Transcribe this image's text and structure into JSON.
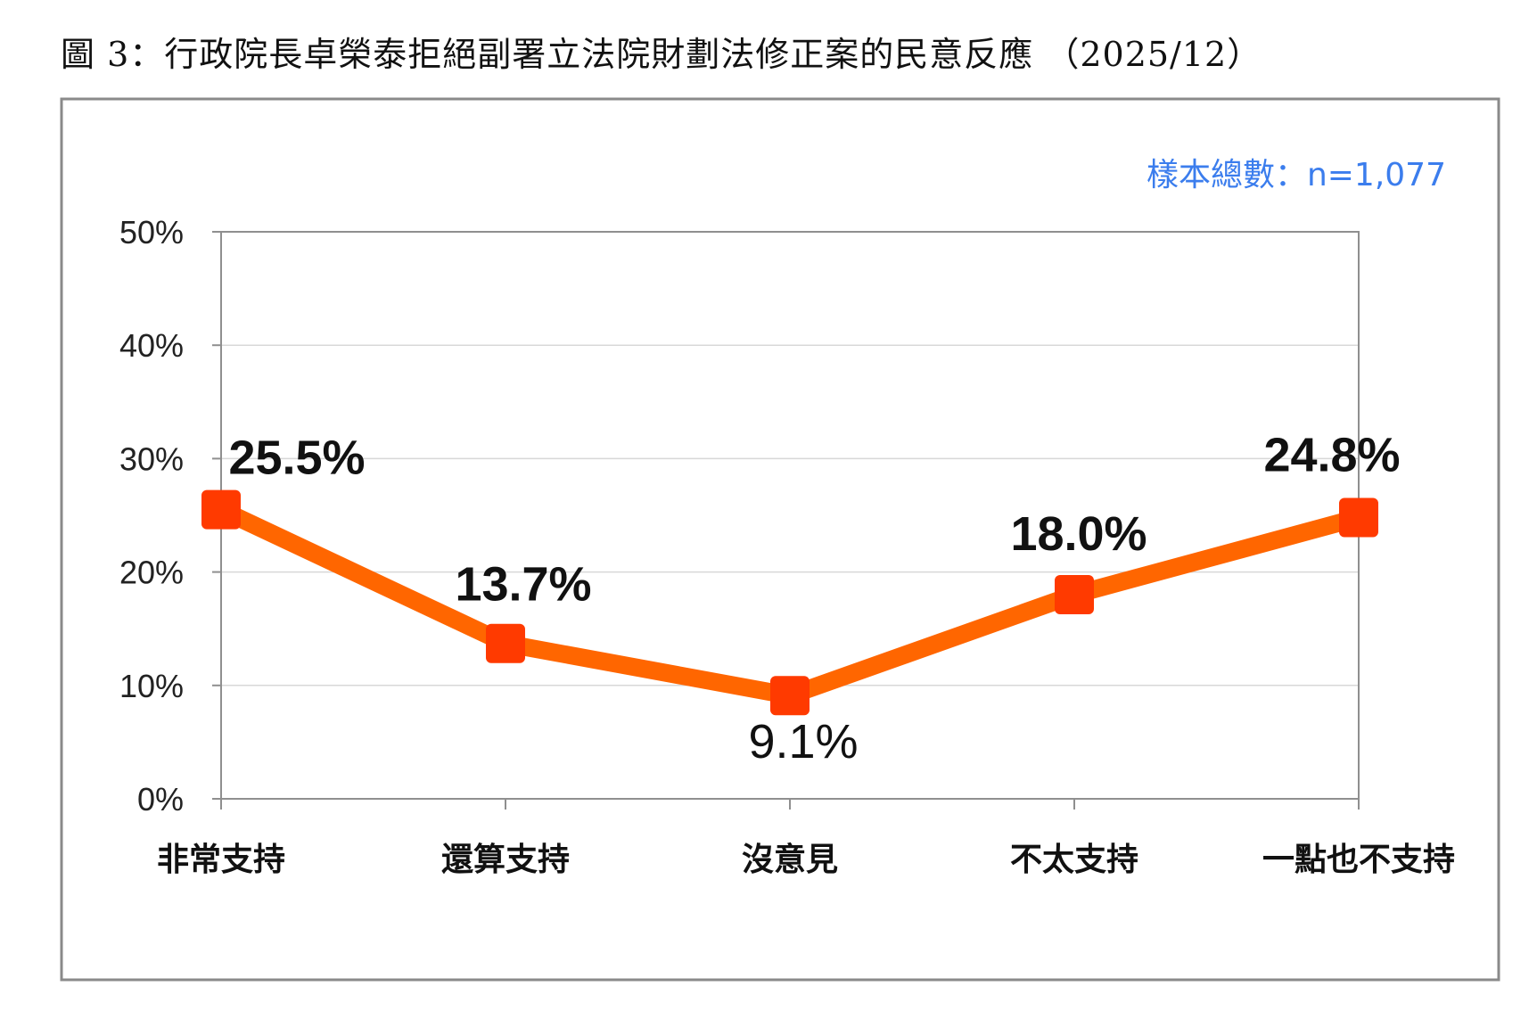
{
  "title": "圖 3：行政院長卓榮泰拒絕副署立法院財劃法修正案的民意反應 （2025/12）",
  "sample_note": "樣本總數：n=1,077",
  "colors": {
    "line": "#ff6600",
    "marker": "#ff3a00",
    "sample": "#3b7ded"
  },
  "chart_data": {
    "type": "line",
    "categories": [
      "非常支持",
      "還算支持",
      "沒意見",
      "不太支持",
      "一點也不支持"
    ],
    "values": [
      25.5,
      13.7,
      9.1,
      18.0,
      24.8
    ],
    "data_labels": [
      "25.5%",
      "13.7%",
      "9.1%",
      "18.0%",
      "24.8%"
    ],
    "y_ticks": [
      "0%",
      "10%",
      "20%",
      "30%",
      "40%",
      "50%"
    ],
    "ylim": [
      0,
      50
    ],
    "grid": true,
    "legend": "none"
  }
}
